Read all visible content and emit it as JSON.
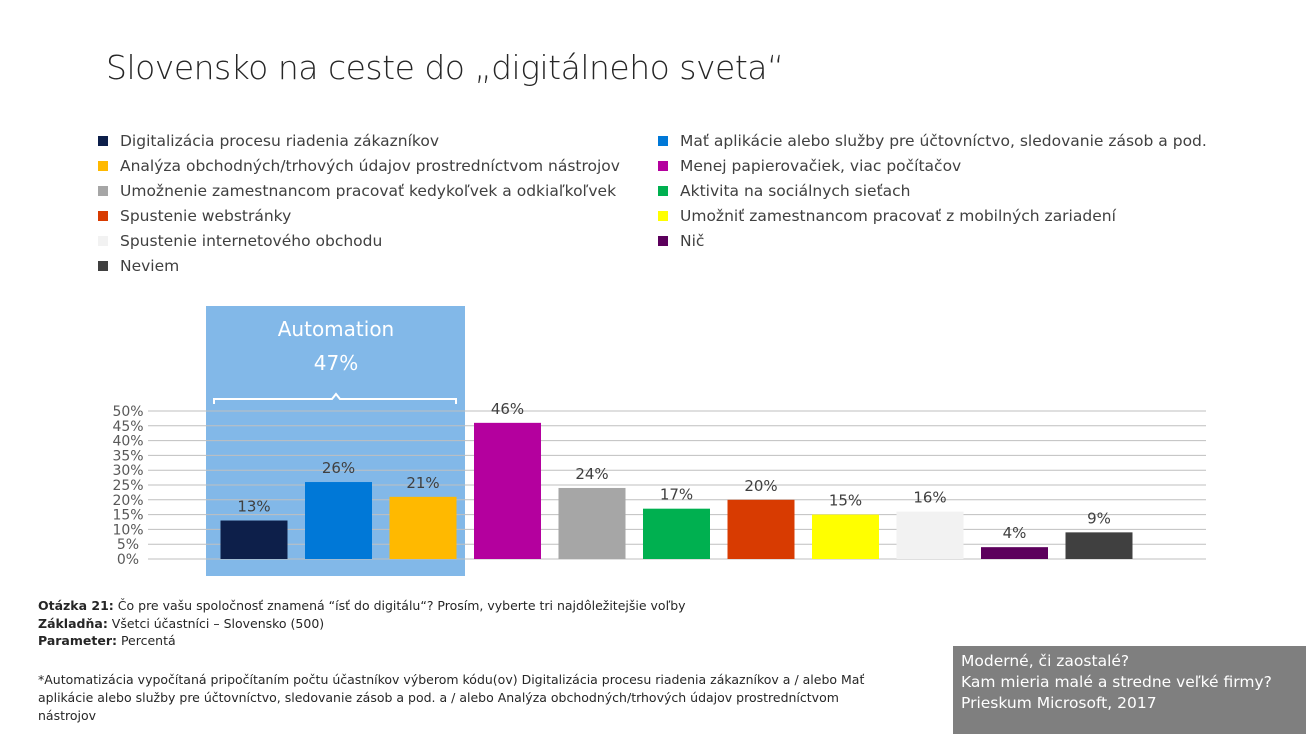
{
  "title": "Slovensko na ceste do „digitálneho sveta“",
  "legend": [
    {
      "label": "Digitalizácia procesu riadenia zákazníkov",
      "color": "#0d1f4a"
    },
    {
      "label": "Analýza obchodných/trhových údajov prostredníctvom nástrojov",
      "color": "#ffb900"
    },
    {
      "label": "Umožnenie zamestnancom pracovať kedykoľvek a odkiaľkoľvek",
      "color": "#a6a6a6"
    },
    {
      "label": "Spustenie webstránky",
      "color": "#d83b01"
    },
    {
      "label": "Spustenie internetového obchodu",
      "color": "#f2f2f2"
    },
    {
      "label": "Neviem",
      "color": "#404040"
    },
    {
      "label": "Mať aplikácie alebo služby pre účtovníctvo, sledovanie zásob a pod.",
      "color": "#0078d7"
    },
    {
      "label": "Menej papierovačiek, viac počítačov",
      "color": "#b4009e"
    },
    {
      "label": "Aktivita na sociálnych sieťach",
      "color": "#00b050"
    },
    {
      "label": "Umožniť zamestnancom pracovať z mobilných zariadení",
      "color": "#ffff00"
    },
    {
      "label": "Nič",
      "color": "#5c005c"
    }
  ],
  "automation": {
    "label": "Automation",
    "value": "47%",
    "color": "#82b8e8"
  },
  "chart_data": {
    "type": "bar",
    "categories": [
      "Digitalizácia procesu riadenia zákazníkov",
      "Mať aplikácie alebo služby pre účtovníctvo, sledovanie zásob a pod.",
      "Analýza obchodných/trhových údajov prostredníctvom nástrojov",
      "Menej papierovačiek, viac počítačov",
      "Umožnenie zamestnancom pracovať kedykoľvek a odkiaľkoľvek",
      "Aktivita na sociálnych sieťach",
      "Spustenie webstránky",
      "Umožniť zamestnancom pracovať z mobilných zariadení",
      "Spustenie internetového obchodu",
      "Nič",
      "Neviem"
    ],
    "values": [
      13,
      26,
      21,
      46,
      24,
      17,
      20,
      15,
      16,
      4,
      9
    ],
    "value_labels": [
      "13%",
      "26%",
      "21%",
      "46%",
      "24%",
      "17%",
      "20%",
      "15%",
      "16%",
      "4%",
      "9%"
    ],
    "colors": [
      "#0d1f4a",
      "#0078d7",
      "#ffb900",
      "#b4009e",
      "#a6a6a6",
      "#00b050",
      "#d83b01",
      "#ffff00",
      "#f2f2f2",
      "#5c005c",
      "#404040"
    ],
    "ylim": [
      0,
      50
    ],
    "yticks": [
      "0%",
      "5%",
      "10%",
      "15%",
      "20%",
      "25%",
      "30%",
      "35%",
      "40%",
      "45%",
      "50%"
    ],
    "grid": true,
    "legend_position": "top"
  },
  "notes": {
    "question_label": "Otázka 21:",
    "question_text": " Čo pre vašu spoločnosť znamená “ísť do digitálu“? Prosím, vyberte tri najdôležitejšie voľby",
    "base_label": "Základňa:",
    "base_text": " Všetci účastníci – Slovensko (500)",
    "param_label": "Parameter:",
    "param_text": " Percentá"
  },
  "footnote": "*Automatizácia vypočítaná pripočítaním počtu účastníkov výberom kódu(ov) Digitalizácia procesu riadenia zákazníkov a / alebo Mať aplikácie alebo služby pre účtovníctvo, sledovanie zásob a pod. a / alebo Analýza obchodných/trhových údajov prostredníctvom nástrojov",
  "source": {
    "line1": "Moderné, či zaostalé?",
    "line2": "Kam mieria malé a stredne veľké firmy?",
    "line3": "Prieskum Microsoft, 2017"
  }
}
